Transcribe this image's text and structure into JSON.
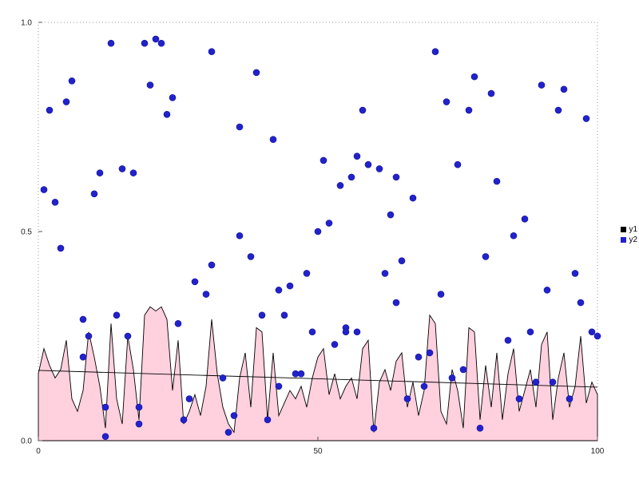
{
  "chart_data": {
    "type": "mixed",
    "title": "",
    "xlabel": "",
    "ylabel": "",
    "x_range": [
      0,
      100
    ],
    "y_range": [
      0.0,
      1.0
    ],
    "x_ticks": [
      0,
      50,
      100
    ],
    "y_ticks": [
      0.0,
      0.5,
      1.0
    ],
    "grid": "dotted-border",
    "legend_position": "right-outside",
    "legend": [
      {
        "label": "y1",
        "color": "#000000"
      },
      {
        "label": "y2",
        "color": "#2222cc"
      }
    ],
    "series": [
      {
        "name": "y1",
        "type": "area",
        "fill": "#ffd0de",
        "stroke": "#000000",
        "x": [
          0,
          1,
          2,
          3,
          4,
          5,
          6,
          7,
          8,
          9,
          10,
          11,
          12,
          13,
          14,
          15,
          16,
          17,
          18,
          19,
          20,
          21,
          22,
          23,
          24,
          25,
          26,
          27,
          28,
          29,
          30,
          31,
          32,
          33,
          34,
          35,
          36,
          37,
          38,
          39,
          40,
          41,
          42,
          43,
          44,
          45,
          46,
          47,
          48,
          49,
          50,
          51,
          52,
          53,
          54,
          55,
          56,
          57,
          58,
          59,
          60,
          61,
          62,
          63,
          64,
          65,
          66,
          67,
          68,
          69,
          70,
          71,
          72,
          73,
          74,
          75,
          76,
          77,
          78,
          79,
          80,
          81,
          82,
          83,
          84,
          85,
          86,
          87,
          88,
          89,
          90,
          91,
          92,
          93,
          94,
          95,
          96,
          97,
          98,
          99,
          100
        ],
        "values": [
          0.16,
          0.22,
          0.18,
          0.15,
          0.17,
          0.24,
          0.1,
          0.07,
          0.12,
          0.26,
          0.2,
          0.13,
          0.03,
          0.28,
          0.1,
          0.04,
          0.25,
          0.17,
          0.05,
          0.3,
          0.32,
          0.31,
          0.32,
          0.29,
          0.12,
          0.24,
          0.04,
          0.07,
          0.11,
          0.06,
          0.13,
          0.29,
          0.16,
          0.08,
          0.04,
          0.02,
          0.15,
          0.21,
          0.08,
          0.27,
          0.26,
          0.05,
          0.21,
          0.06,
          0.09,
          0.12,
          0.1,
          0.13,
          0.08,
          0.15,
          0.2,
          0.22,
          0.11,
          0.16,
          0.1,
          0.13,
          0.15,
          0.1,
          0.22,
          0.24,
          0.02,
          0.14,
          0.17,
          0.12,
          0.19,
          0.21,
          0.08,
          0.14,
          0.06,
          0.12,
          0.3,
          0.28,
          0.07,
          0.04,
          0.17,
          0.12,
          0.03,
          0.27,
          0.26,
          0.05,
          0.18,
          0.08,
          0.21,
          0.05,
          0.16,
          0.22,
          0.07,
          0.12,
          0.17,
          0.08,
          0.23,
          0.26,
          0.05,
          0.15,
          0.21,
          0.08,
          0.13,
          0.25,
          0.09,
          0.14,
          0.11
        ]
      },
      {
        "name": "y1-smooth",
        "type": "line",
        "stroke": "#000000",
        "x": [
          0,
          100
        ],
        "values": [
          0.168,
          0.128
        ]
      },
      {
        "name": "y2",
        "type": "scatter",
        "color": "#2222cc",
        "marker": "circle",
        "points": [
          [
            1,
            0.6
          ],
          [
            2,
            0.79
          ],
          [
            3,
            0.57
          ],
          [
            4,
            0.46
          ],
          [
            5,
            0.81
          ],
          [
            6,
            0.86
          ],
          [
            8,
            0.29
          ],
          [
            8,
            0.2
          ],
          [
            9,
            0.25
          ],
          [
            10,
            0.59
          ],
          [
            11,
            0.64
          ],
          [
            12,
            0.01
          ],
          [
            12,
            0.08
          ],
          [
            13,
            0.95
          ],
          [
            14,
            0.3
          ],
          [
            15,
            0.65
          ],
          [
            16,
            0.25
          ],
          [
            17,
            0.64
          ],
          [
            18,
            0.04
          ],
          [
            18,
            0.08
          ],
          [
            19,
            0.95
          ],
          [
            20,
            0.85
          ],
          [
            21,
            0.96
          ],
          [
            22,
            0.95
          ],
          [
            23,
            0.78
          ],
          [
            24,
            0.82
          ],
          [
            25,
            0.28
          ],
          [
            26,
            0.05
          ],
          [
            27,
            0.1
          ],
          [
            28,
            0.38
          ],
          [
            30,
            0.35
          ],
          [
            31,
            0.93
          ],
          [
            31,
            0.42
          ],
          [
            33,
            0.15
          ],
          [
            34,
            0.02
          ],
          [
            35,
            0.06
          ],
          [
            36,
            0.49
          ],
          [
            36,
            0.75
          ],
          [
            38,
            0.44
          ],
          [
            39,
            0.88
          ],
          [
            40,
            0.3
          ],
          [
            41,
            0.05
          ],
          [
            42,
            0.72
          ],
          [
            43,
            0.36
          ],
          [
            43,
            0.13
          ],
          [
            44,
            0.3
          ],
          [
            45,
            0.37
          ],
          [
            46,
            0.16
          ],
          [
            47,
            0.16
          ],
          [
            48,
            0.4
          ],
          [
            49,
            0.26
          ],
          [
            50,
            0.5
          ],
          [
            51,
            0.67
          ],
          [
            52,
            0.52
          ],
          [
            53,
            0.23
          ],
          [
            54,
            0.61
          ],
          [
            55,
            0.27
          ],
          [
            55,
            0.26
          ],
          [
            56,
            0.63
          ],
          [
            57,
            0.26
          ],
          [
            57,
            0.68
          ],
          [
            58,
            0.79
          ],
          [
            59,
            0.66
          ],
          [
            60,
            0.03
          ],
          [
            61,
            0.65
          ],
          [
            62,
            0.4
          ],
          [
            63,
            0.54
          ],
          [
            64,
            0.63
          ],
          [
            64,
            0.33
          ],
          [
            65,
            0.43
          ],
          [
            66,
            0.1
          ],
          [
            67,
            0.58
          ],
          [
            68,
            0.2
          ],
          [
            69,
            0.13
          ],
          [
            70,
            0.21
          ],
          [
            71,
            0.93
          ],
          [
            72,
            0.35
          ],
          [
            73,
            0.81
          ],
          [
            74,
            0.15
          ],
          [
            75,
            0.66
          ],
          [
            76,
            0.17
          ],
          [
            77,
            0.79
          ],
          [
            78,
            0.87
          ],
          [
            79,
            0.03
          ],
          [
            80,
            0.44
          ],
          [
            81,
            0.83
          ],
          [
            82,
            0.62
          ],
          [
            84,
            0.24
          ],
          [
            85,
            0.49
          ],
          [
            86,
            0.1
          ],
          [
            87,
            0.53
          ],
          [
            88,
            0.26
          ],
          [
            89,
            0.14
          ],
          [
            90,
            0.85
          ],
          [
            91,
            0.36
          ],
          [
            92,
            0.14
          ],
          [
            93,
            0.79
          ],
          [
            94,
            0.84
          ],
          [
            95,
            0.1
          ],
          [
            96,
            0.4
          ],
          [
            97,
            0.33
          ],
          [
            98,
            0.77
          ],
          [
            99,
            0.26
          ],
          [
            100,
            0.25
          ]
        ]
      }
    ]
  },
  "colors": {
    "background": "#ffffff",
    "border": "#999999",
    "tick_text": "#222222",
    "area_fill": "#ffd0de",
    "area_stroke": "#000000",
    "point_fill": "#2222cc"
  }
}
